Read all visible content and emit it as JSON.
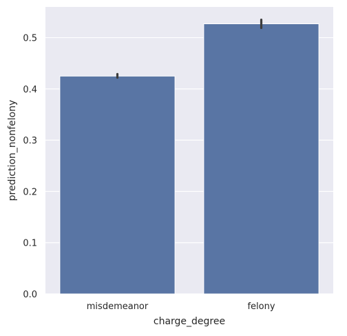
{
  "chart_data": {
    "type": "bar",
    "categories": [
      "misdemeanor",
      "felony"
    ],
    "values": [
      0.425,
      0.527
    ],
    "error_bars": [
      {
        "low": 0.422,
        "high": 0.429
      },
      {
        "low": 0.519,
        "high": 0.535
      }
    ],
    "xlabel": "charge_degree",
    "ylabel": "prediction_nonfelony",
    "ylim": [
      0,
      0.56
    ],
    "yticks": [
      "0.0",
      "0.1",
      "0.2",
      "0.3",
      "0.4",
      "0.5"
    ],
    "ytick_values": [
      0,
      0.1,
      0.2,
      0.3,
      0.4,
      0.5
    ],
    "grid": true,
    "colors": {
      "bar": "#5975a4",
      "background": "#eaeaf2",
      "grid": "#ffffff",
      "error_bar": "#3d3d3d"
    }
  }
}
